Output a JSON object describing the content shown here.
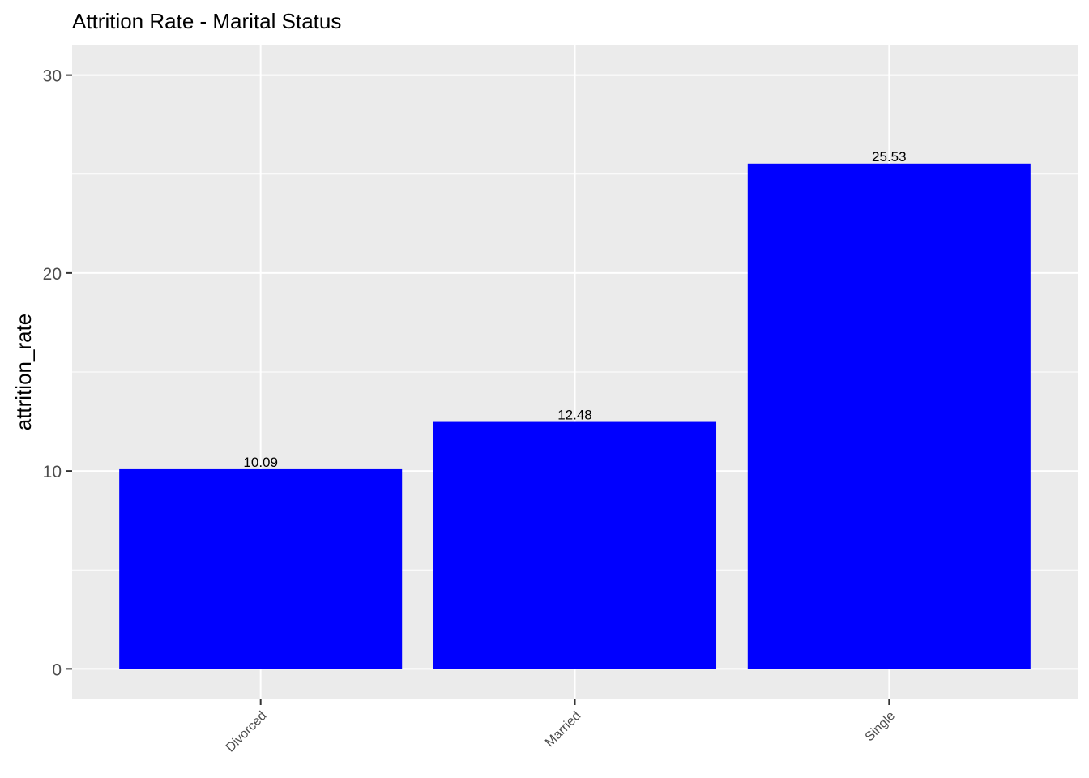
{
  "chart_data": {
    "type": "bar",
    "title": "Attrition Rate - Marital Status",
    "xlabel": "",
    "ylabel": "attrition_rate",
    "categories": [
      "Divorced",
      "Married",
      "Single"
    ],
    "values": [
      10.09,
      12.48,
      25.53
    ],
    "data_labels": [
      "10.09",
      "12.48",
      "25.53"
    ],
    "ylim": [
      -1.5,
      31.5
    ],
    "yticks": [
      0,
      10,
      20,
      30
    ],
    "ytick_labels": [
      "0",
      "10",
      "20",
      "30"
    ],
    "bar_color": "#0000ff",
    "panel_background": "#ebebeb",
    "grid_color": "#ffffff",
    "grid": true,
    "legend": "none"
  }
}
